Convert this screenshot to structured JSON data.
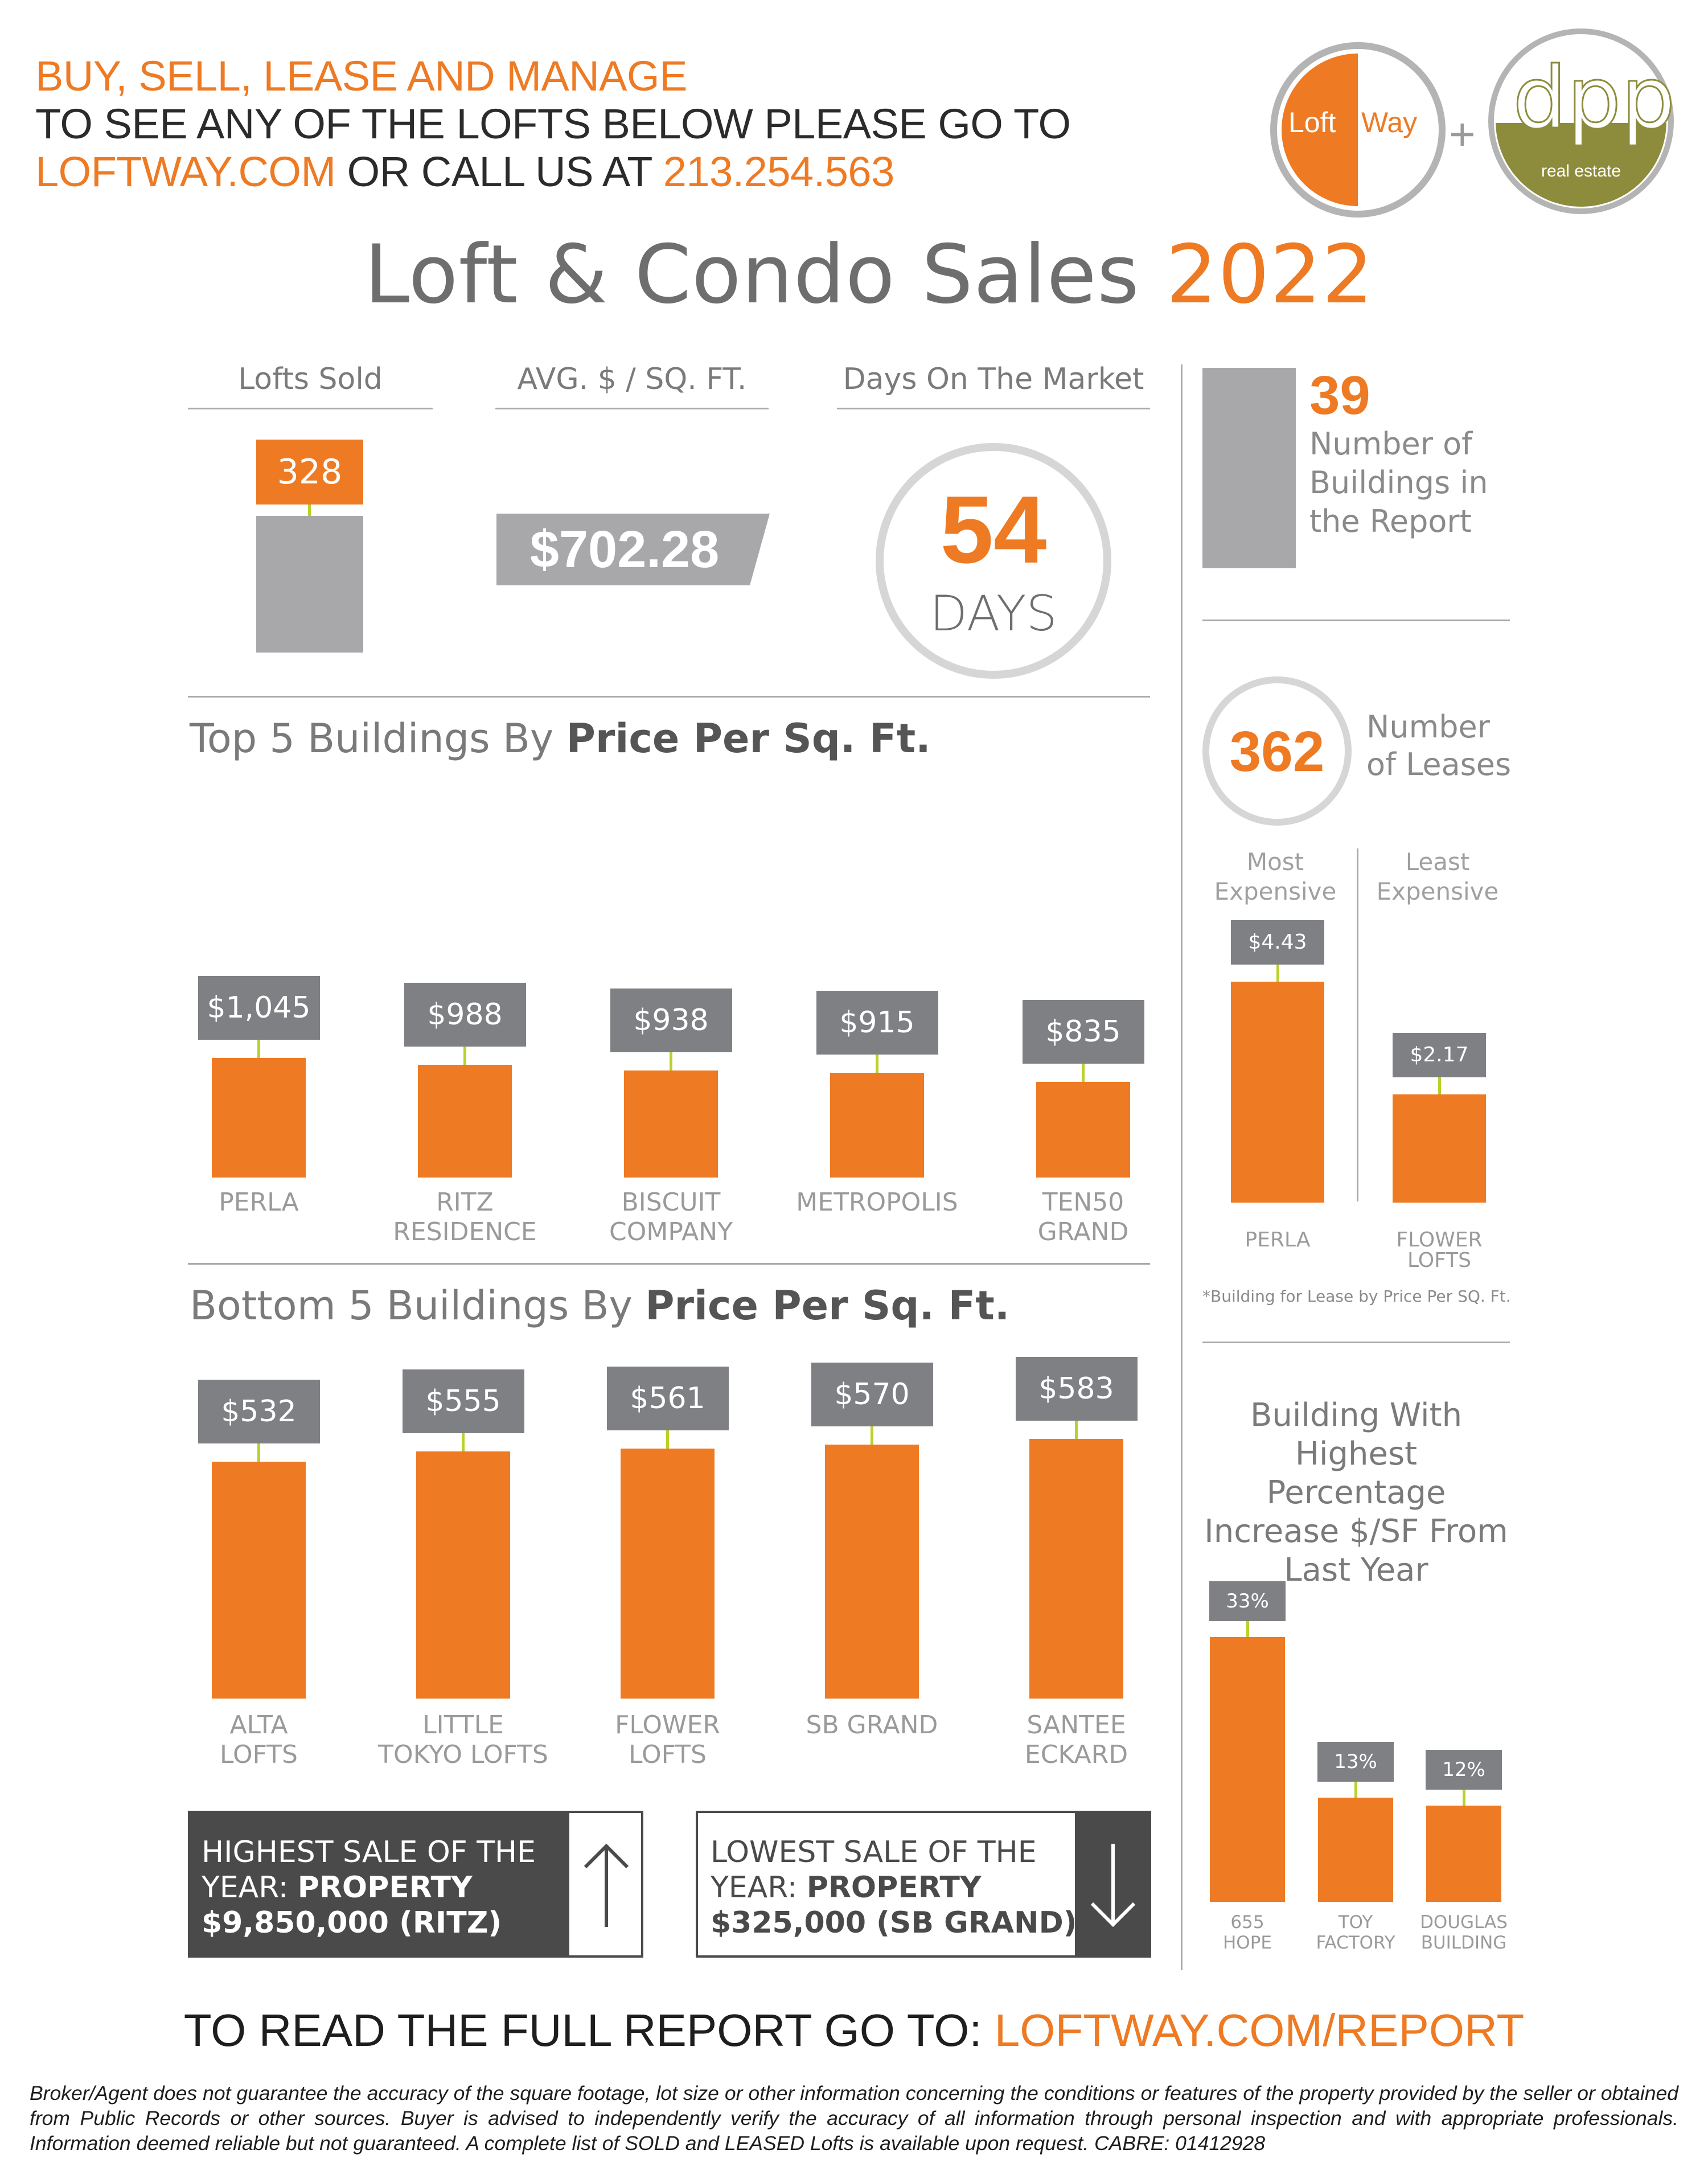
{
  "header": {
    "line1": "BUY, SELL, LEASE AND MANAGE",
    "line2": "TO SEE ANY OF THE LOFTS BELOW PLEASE  GO TO",
    "line3_site": "LOFTWAY.COM",
    "line3_mid": " OR CALL US AT ",
    "line3_phone": "213.254.563"
  },
  "logos": {
    "loftway_left": "Loft",
    "loftway_right": "Way",
    "plus": "+",
    "dpp_main": "dpp",
    "dpp_sub": "real estate"
  },
  "title": {
    "main": "Loft & Condo Sales ",
    "year": "2022"
  },
  "stats": {
    "lofts_sold_label": "Lofts Sold",
    "lofts_sold_value": "328",
    "avg_label": "AVG. $ / SQ. FT.",
    "avg_value": "$702.28",
    "dom_label": "Days On The Market",
    "dom_value": "54",
    "dom_unit": "DAYS",
    "buildings_value": "39",
    "buildings_label": "Number of Buildings in the Report",
    "leases_value": "362",
    "leases_label": "Number of Leases"
  },
  "top5": {
    "title_plain": "Top 5 Buildings By ",
    "title_bold": "Price Per Sq. Ft."
  },
  "bottom5": {
    "title_plain": "Bottom 5 Buildings By ",
    "title_bold": "Price Per Sq. Ft."
  },
  "lease": {
    "most_label": "Most Expensive",
    "least_label": "Least Expensive",
    "footnote": "*Building for Lease by Price Per SQ. Ft."
  },
  "increase": {
    "title": "Building With Highest Percentage Increase $/SF From Last Year"
  },
  "highest_sale": {
    "line1": "HIGHEST SALE OF THE",
    "line2_plain": "YEAR: ",
    "line2_bold": "PROPERTY",
    "line3": "$9,850,000 (RITZ)"
  },
  "lowest_sale": {
    "line1": "LOWEST SALE OF THE",
    "line2_plain": "YEAR: ",
    "line2_bold": "PROPERTY",
    "line3": "$325,000 (SB GRAND)"
  },
  "footer": {
    "cta_plain": "TO READ THE FULL REPORT GO TO: ",
    "cta_link": "LOFTWAY.COM/REPORT",
    "disclaimer": "Broker/Agent does not guarantee the accuracy of the square footage, lot size or other information concerning the conditions or features of the property provided by the seller or obtained from Public Records or other sources. Buyer is advised to independently verify the accuracy of all information through personal inspection and with appropriate professionals. Information deemed reliable but not guaranteed. A complete list of SOLD and LEASED Lofts is available upon request. CABRE: 01412928"
  },
  "colors": {
    "accent": "#ee7a23",
    "grey": "#7f8083",
    "stem": "#bcd02a",
    "olive": "#8c8c3c"
  },
  "chart_data": [
    {
      "id": "top5",
      "type": "bar",
      "title": "Top 5 Buildings By Price Per Sq. Ft.",
      "categories": [
        "PERLA",
        "RITZ\nRESIDENCE",
        "BISCUIT\nCOMPANY",
        "METROPOLIS",
        "TEN50\nGRAND"
      ],
      "values": [
        1045,
        988,
        938,
        915,
        835
      ],
      "labels": [
        "$1,045",
        "$988",
        "$938",
        "$915",
        "$835"
      ],
      "unit": "$/sq.ft."
    },
    {
      "id": "bottom5",
      "type": "bar",
      "title": "Bottom 5 Buildings By Price Per Sq. Ft.",
      "categories": [
        "ALTA\nLOFTS",
        "LITTLE\nTOKYO LOFTS",
        "FLOWER\nLOFTS",
        "SB GRAND",
        "SANTEE\nECKARD"
      ],
      "values": [
        532,
        555,
        561,
        570,
        583
      ],
      "labels": [
        "$532",
        "$555",
        "$561",
        "$570",
        "$583"
      ],
      "unit": "$/sq.ft."
    },
    {
      "id": "lease",
      "type": "bar",
      "title": "Building for Lease by Price Per SQ. Ft.",
      "categories": [
        "PERLA",
        "FLOWER\nLOFTS"
      ],
      "values": [
        4.43,
        2.17
      ],
      "labels": [
        "$4.43",
        "$2.17"
      ]
    },
    {
      "id": "increase",
      "type": "bar",
      "title": "Building With Highest Percentage Increase $/SF From Last Year",
      "categories": [
        "655\nHOPE",
        "TOY\nFACTORY",
        "DOUGLAS\nBUILDING"
      ],
      "values": [
        33,
        13,
        12
      ],
      "labels": [
        "33%",
        "13%",
        "12%"
      ]
    }
  ]
}
